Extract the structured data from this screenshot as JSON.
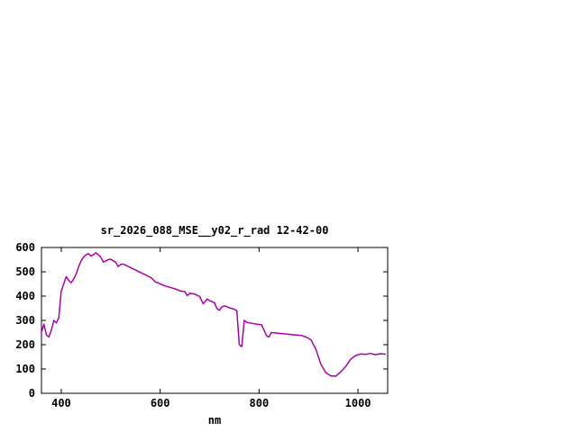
{
  "chart_data": {
    "type": "line",
    "title": "sr_2026_088_MSE__y02_r_rad 12-42-00",
    "xlabel": "nm",
    "ylabel": "",
    "xlim": [
      360,
      1060
    ],
    "ylim": [
      0,
      600
    ],
    "x_ticks": [
      400,
      600,
      800,
      1000
    ],
    "y_ticks": [
      0,
      100,
      200,
      300,
      400,
      500,
      600
    ],
    "grid": false,
    "legend": "none",
    "background_color": "#ffffff",
    "axis_color": "#000000",
    "line_color": "#aa00aa",
    "series": [
      {
        "name": "sr_2026_088_MSE__y02_r_rad",
        "points": [
          [
            360,
            250
          ],
          [
            365,
            285
          ],
          [
            370,
            240
          ],
          [
            375,
            232
          ],
          [
            380,
            260
          ],
          [
            385,
            300
          ],
          [
            390,
            290
          ],
          [
            395,
            310
          ],
          [
            400,
            420
          ],
          [
            405,
            450
          ],
          [
            410,
            480
          ],
          [
            415,
            465
          ],
          [
            420,
            455
          ],
          [
            425,
            470
          ],
          [
            430,
            490
          ],
          [
            435,
            520
          ],
          [
            440,
            545
          ],
          [
            445,
            560
          ],
          [
            450,
            570
          ],
          [
            455,
            575
          ],
          [
            460,
            565
          ],
          [
            465,
            570
          ],
          [
            470,
            578
          ],
          [
            475,
            570
          ],
          [
            480,
            560
          ],
          [
            485,
            540
          ],
          [
            490,
            545
          ],
          [
            495,
            550
          ],
          [
            500,
            552
          ],
          [
            505,
            545
          ],
          [
            510,
            540
          ],
          [
            515,
            522
          ],
          [
            520,
            530
          ],
          [
            525,
            532
          ],
          [
            530,
            528
          ],
          [
            535,
            522
          ],
          [
            540,
            518
          ],
          [
            545,
            512
          ],
          [
            550,
            508
          ],
          [
            555,
            502
          ],
          [
            560,
            498
          ],
          [
            565,
            492
          ],
          [
            570,
            488
          ],
          [
            575,
            482
          ],
          [
            580,
            478
          ],
          [
            585,
            470
          ],
          [
            590,
            458
          ],
          [
            595,
            455
          ],
          [
            600,
            450
          ],
          [
            610,
            442
          ],
          [
            620,
            436
          ],
          [
            630,
            430
          ],
          [
            640,
            422
          ],
          [
            650,
            418
          ],
          [
            655,
            402
          ],
          [
            660,
            412
          ],
          [
            670,
            408
          ],
          [
            680,
            398
          ],
          [
            687,
            368
          ],
          [
            695,
            388
          ],
          [
            700,
            382
          ],
          [
            710,
            372
          ],
          [
            715,
            348
          ],
          [
            720,
            342
          ],
          [
            725,
            356
          ],
          [
            730,
            360
          ],
          [
            740,
            352
          ],
          [
            750,
            346
          ],
          [
            755,
            340
          ],
          [
            760,
            200
          ],
          [
            765,
            192
          ],
          [
            770,
            300
          ],
          [
            775,
            292
          ],
          [
            785,
            288
          ],
          [
            795,
            285
          ],
          [
            805,
            282
          ],
          [
            810,
            260
          ],
          [
            815,
            237
          ],
          [
            820,
            232
          ],
          [
            825,
            250
          ],
          [
            835,
            248
          ],
          [
            845,
            246
          ],
          [
            855,
            244
          ],
          [
            865,
            242
          ],
          [
            875,
            240
          ],
          [
            885,
            238
          ],
          [
            895,
            232
          ],
          [
            905,
            220
          ],
          [
            915,
            180
          ],
          [
            925,
            120
          ],
          [
            935,
            85
          ],
          [
            945,
            72
          ],
          [
            955,
            70
          ],
          [
            965,
            88
          ],
          [
            975,
            110
          ],
          [
            985,
            140
          ],
          [
            995,
            155
          ],
          [
            1005,
            162
          ],
          [
            1015,
            160
          ],
          [
            1025,
            164
          ],
          [
            1035,
            159
          ],
          [
            1045,
            163
          ],
          [
            1055,
            161
          ]
        ]
      }
    ]
  }
}
